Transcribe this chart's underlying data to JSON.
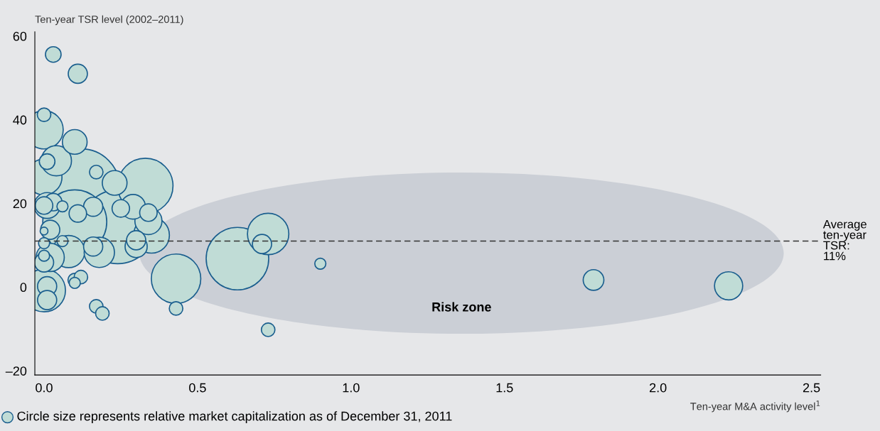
{
  "chart_data": {
    "type": "bubble",
    "ylabel": "Ten-year TSR level (2002–2011)",
    "xlabel": "Ten-year M&A activity level$^{1}$",
    "xlim": [
      -0.03,
      2.53
    ],
    "ylim": [
      -21,
      61
    ],
    "xticks": [
      {
        "value": 0,
        "label": "0.0"
      },
      {
        "value": 0.5,
        "label": "0.5"
      },
      {
        "value": 1.0,
        "label": "1.0"
      },
      {
        "value": 1.5,
        "label": "1.5"
      },
      {
        "value": 2.0,
        "label": "2.0"
      },
      {
        "value": 2.5,
        "label": "2.5"
      }
    ],
    "yticks": [
      {
        "value": -20,
        "label": "–20"
      },
      0,
      20,
      40,
      60
    ],
    "grid": false,
    "series": [
      {
        "color": "#c0dcd6",
        "x": [
          0.12,
          0.24,
          0.1,
          0.63,
          0.33,
          0.43,
          0.0,
          0.73,
          0.0,
          0.0,
          0.35,
          0.08,
          0.04,
          0.18,
          0.02,
          2.23,
          0.34,
          0.01,
          0.1,
          0.23,
          0.29,
          0.3,
          1.79,
          0.11,
          0.16,
          0.3,
          0.02,
          0.16,
          0.0,
          0.01,
          0.01,
          0.71,
          0.03,
          0.11,
          0.25,
          0.34,
          0.0,
          0.03,
          0.01,
          0.0,
          0.17,
          0.1,
          0.12,
          0.17,
          0.19,
          0.43,
          0.73,
          0.06,
          0.0,
          0.06,
          0.0,
          0.1,
          0.9,
          0.0
        ],
        "values": [
          23.7,
          14.4,
          15.6,
          6.8,
          24.2,
          2.0,
          -0.8,
          12.7,
          37.6,
          26.3,
          12.4,
          8.5,
          30.2,
          8.3,
          7.1,
          0.3,
          15.8,
          19.5,
          34.7,
          24.9,
          19.2,
          9.7,
          1.7,
          51.0,
          19.2,
          11.2,
          13.7,
          9.7,
          5.9,
          0.2,
          -3.1,
          10.3,
          20.3,
          17.6,
          18.8,
          17.8,
          19.5,
          55.6,
          30.0,
          41.2,
          27.5,
          1.7,
          2.4,
          -4.6,
          -6.3,
          -5.1,
          -10.2,
          19.3,
          10.5,
          11.0,
          7.5,
          1.0,
          5.6,
          13.4
        ],
        "sizes": [
          1,
          0.89,
          0.67,
          0.64,
          0.5,
          0.4,
          0.3,
          0.28,
          0.24,
          0.21,
          0.21,
          0.17,
          0.15,
          0.15,
          0.13,
          0.13,
          0.12,
          0.11,
          0.1,
          0.1,
          0.1,
          0.08,
          0.07,
          0.06,
          0.06,
          0.06,
          0.06,
          0.06,
          0.06,
          0.06,
          0.06,
          0.06,
          0.05,
          0.05,
          0.05,
          0.05,
          0.05,
          0.04,
          0.04,
          0.03,
          0.03,
          0.03,
          0.03,
          0.03,
          0.03,
          0.03,
          0.03,
          0.02,
          0.02,
          0.02,
          0.02,
          0.02,
          0.02,
          0.01
        ]
      }
    ],
    "ref_lines": [
      {
        "axis": "y",
        "value": 11,
        "label": "Average ten-year TSR: 11%",
        "color": "#333333",
        "line_style": "dashed"
      }
    ],
    "annotations": [
      "Risk zone",
      "Circle size represents relative market capitalization as of December 31, 2011"
    ]
  }
}
